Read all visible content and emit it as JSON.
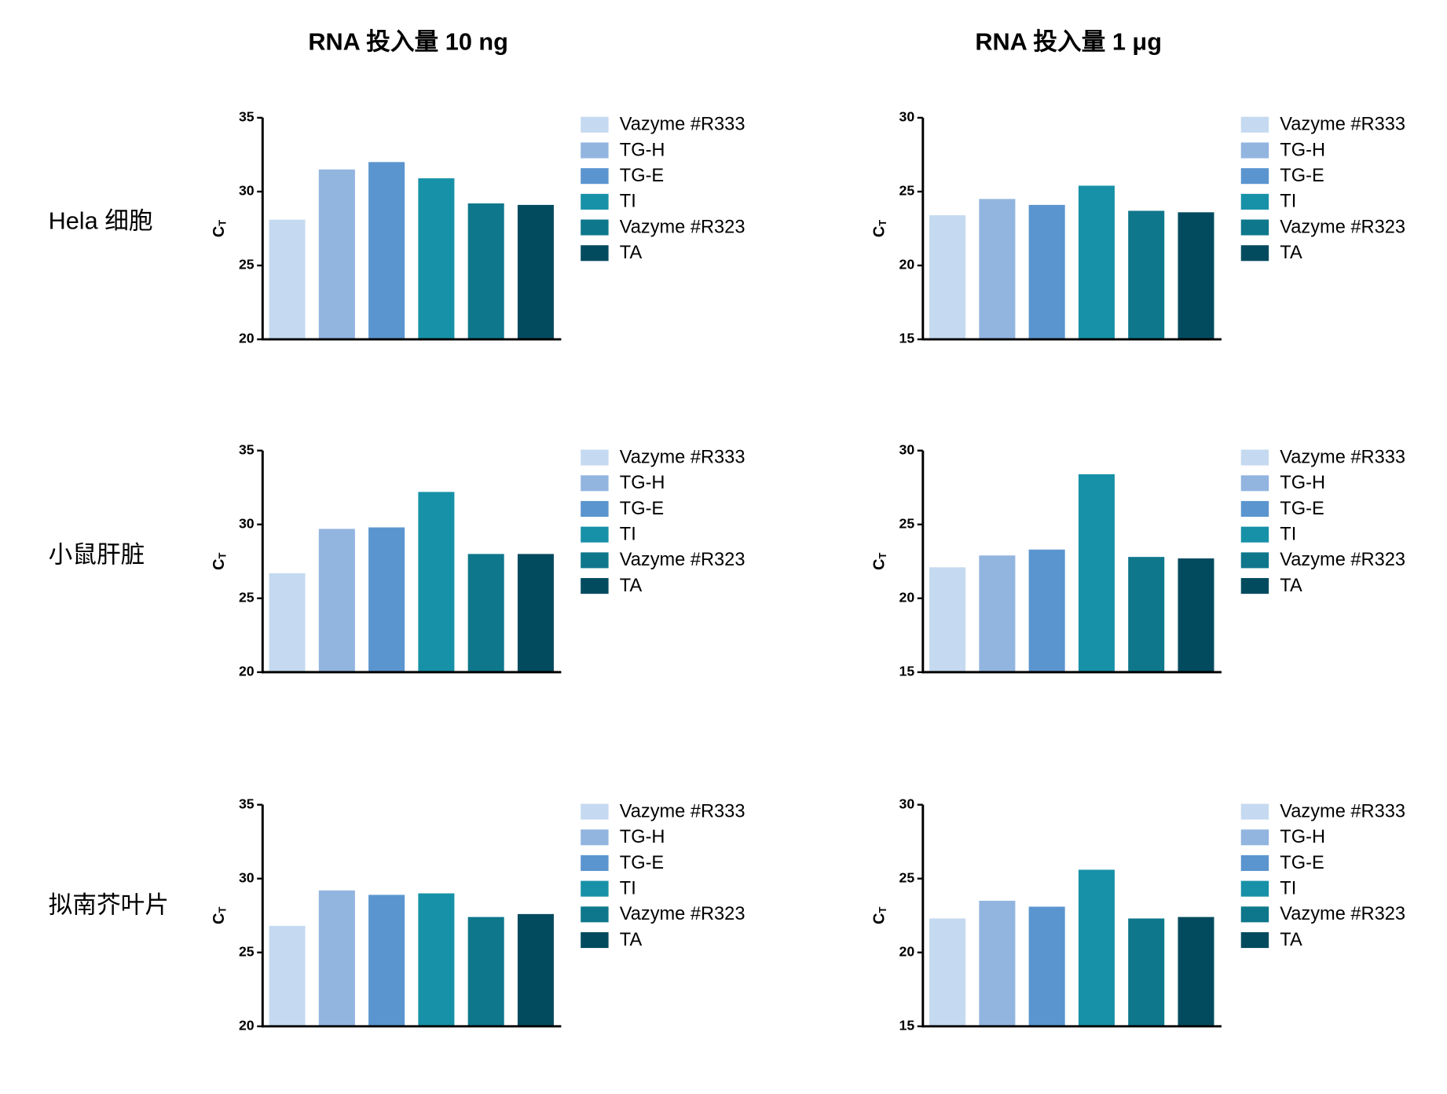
{
  "column_titles": [
    "RNA 投入量 10 ng",
    "RNA 投入量 1 μg"
  ],
  "row_labels": [
    "Hela 细胞",
    "小鼠肝脏",
    "拟南芥叶片"
  ],
  "chart_data": [
    {
      "type": "bar",
      "ylabel": "C",
      "ylabel_subscript": "T",
      "ylim": [
        20,
        35
      ],
      "yticks": [
        20,
        25,
        30,
        35
      ],
      "series": [
        {
          "name": "Vazyme #R333",
          "color": "#c5daf0",
          "values": [
            28.1
          ]
        },
        {
          "name": "TG-H",
          "color": "#92b5e0",
          "values": [
            31.5
          ]
        },
        {
          "name": "TG-E",
          "color": "#5b95cf",
          "values": [
            32.0
          ]
        },
        {
          "name": "TI",
          "color": "#1791a8",
          "values": [
            30.9
          ]
        },
        {
          "name": "Vazyme #R323",
          "color": "#0e778c",
          "values": [
            29.2
          ]
        },
        {
          "name": "TA",
          "color": "#024b5f",
          "values": [
            29.1
          ]
        }
      ]
    },
    {
      "type": "bar",
      "ylabel": "C",
      "ylabel_subscript": "T",
      "ylim": [
        15,
        30
      ],
      "yticks": [
        15,
        20,
        25,
        30
      ],
      "series": [
        {
          "name": "Vazyme #R333",
          "color": "#c5daf0",
          "values": [
            23.4
          ]
        },
        {
          "name": "TG-H",
          "color": "#92b5e0",
          "values": [
            24.5
          ]
        },
        {
          "name": "TG-E",
          "color": "#5b95cf",
          "values": [
            24.1
          ]
        },
        {
          "name": "TI",
          "color": "#1791a8",
          "values": [
            25.4
          ]
        },
        {
          "name": "Vazyme #R323",
          "color": "#0e778c",
          "values": [
            23.7
          ]
        },
        {
          "name": "TA",
          "color": "#024b5f",
          "values": [
            23.6
          ]
        }
      ]
    },
    {
      "type": "bar",
      "ylabel": "C",
      "ylabel_subscript": "T",
      "ylim": [
        20,
        35
      ],
      "yticks": [
        20,
        25,
        30,
        35
      ],
      "series": [
        {
          "name": "Vazyme #R333",
          "color": "#c5daf0",
          "values": [
            26.7
          ]
        },
        {
          "name": "TG-H",
          "color": "#92b5e0",
          "values": [
            29.7
          ]
        },
        {
          "name": "TG-E",
          "color": "#5b95cf",
          "values": [
            29.8
          ]
        },
        {
          "name": "TI",
          "color": "#1791a8",
          "values": [
            32.2
          ]
        },
        {
          "name": "Vazyme #R323",
          "color": "#0e778c",
          "values": [
            28.0
          ]
        },
        {
          "name": "TA",
          "color": "#024b5f",
          "values": [
            28.0
          ]
        }
      ]
    },
    {
      "type": "bar",
      "ylabel": "C",
      "ylabel_subscript": "T",
      "ylim": [
        15,
        30
      ],
      "yticks": [
        15,
        20,
        25,
        30
      ],
      "series": [
        {
          "name": "Vazyme #R333",
          "color": "#c5daf0",
          "values": [
            22.1
          ]
        },
        {
          "name": "TG-H",
          "color": "#92b5e0",
          "values": [
            22.9
          ]
        },
        {
          "name": "TG-E",
          "color": "#5b95cf",
          "values": [
            23.3
          ]
        },
        {
          "name": "TI",
          "color": "#1791a8",
          "values": [
            28.4
          ]
        },
        {
          "name": "Vazyme #R323",
          "color": "#0e778c",
          "values": [
            22.8
          ]
        },
        {
          "name": "TA",
          "color": "#024b5f",
          "values": [
            22.7
          ]
        }
      ]
    },
    {
      "type": "bar",
      "ylabel": "C",
      "ylabel_subscript": "T",
      "ylim": [
        20,
        35
      ],
      "yticks": [
        20,
        25,
        30,
        35
      ],
      "series": [
        {
          "name": "Vazyme #R333",
          "color": "#c5daf0",
          "values": [
            26.8
          ]
        },
        {
          "name": "TG-H",
          "color": "#92b5e0",
          "values": [
            29.2
          ]
        },
        {
          "name": "TG-E",
          "color": "#5b95cf",
          "values": [
            28.9
          ]
        },
        {
          "name": "TI",
          "color": "#1791a8",
          "values": [
            29.0
          ]
        },
        {
          "name": "Vazyme #R323",
          "color": "#0e778c",
          "values": [
            27.4
          ]
        },
        {
          "name": "TA",
          "color": "#024b5f",
          "values": [
            27.6
          ]
        }
      ]
    },
    {
      "type": "bar",
      "ylabel": "C",
      "ylabel_subscript": "T",
      "ylim": [
        15,
        30
      ],
      "yticks": [
        15,
        20,
        25,
        30
      ],
      "series": [
        {
          "name": "Vazyme #R333",
          "color": "#c5daf0",
          "values": [
            22.3
          ]
        },
        {
          "name": "TG-H",
          "color": "#92b5e0",
          "values": [
            23.5
          ]
        },
        {
          "name": "TG-E",
          "color": "#5b95cf",
          "values": [
            23.1
          ]
        },
        {
          "name": "TI",
          "color": "#1791a8",
          "values": [
            25.6
          ]
        },
        {
          "name": "Vazyme #R323",
          "color": "#0e778c",
          "values": [
            22.3
          ]
        },
        {
          "name": "TA",
          "color": "#024b5f",
          "values": [
            22.4
          ]
        }
      ]
    }
  ]
}
